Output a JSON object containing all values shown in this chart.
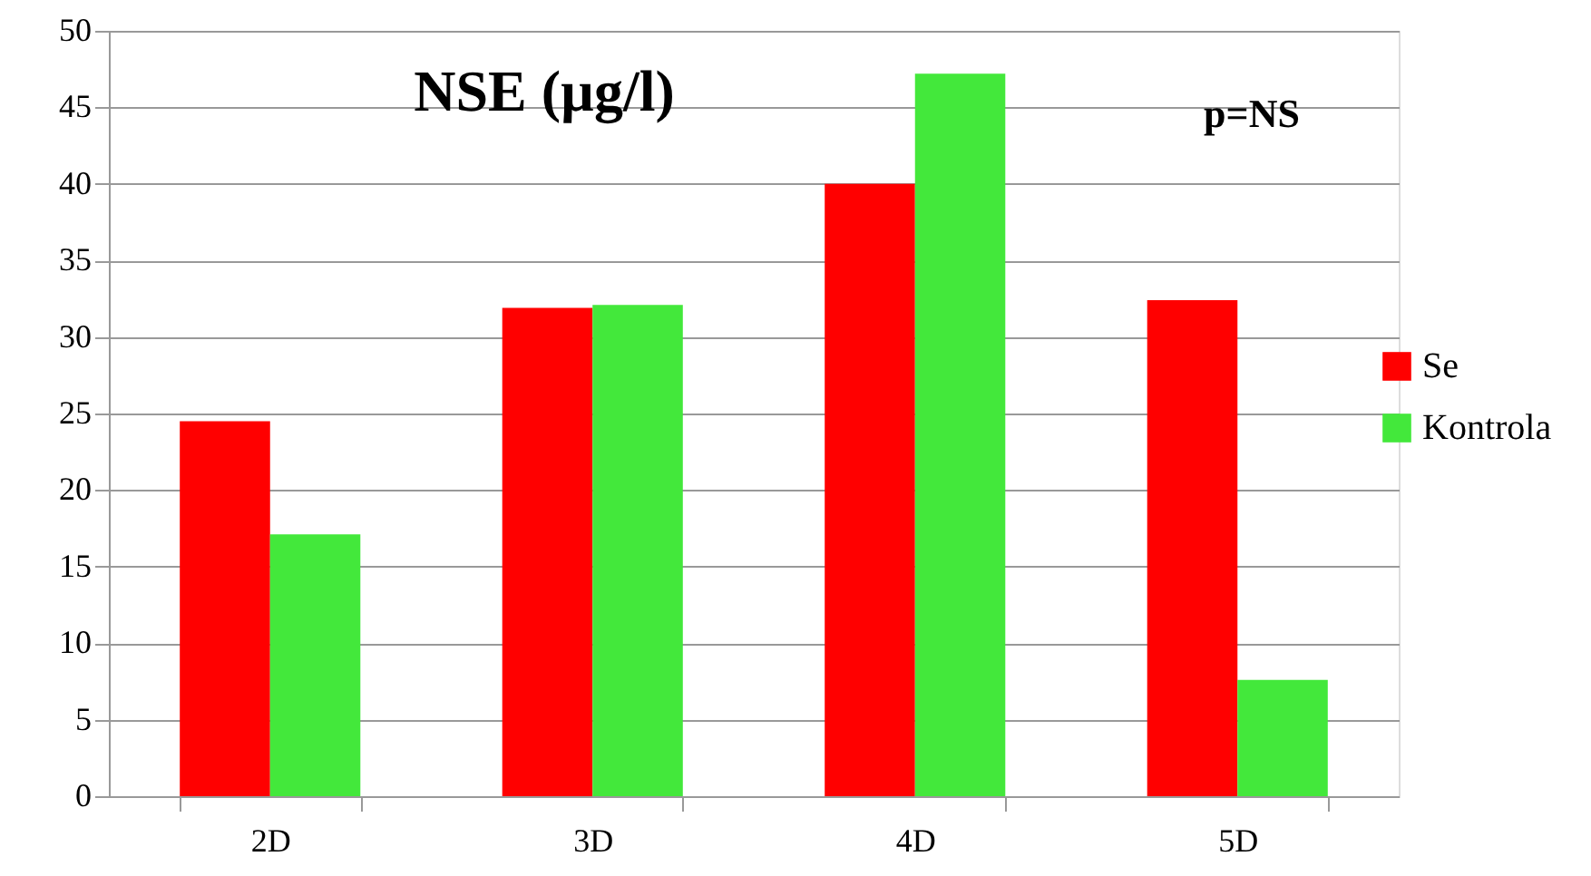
{
  "chart_data": {
    "type": "bar",
    "title": "NSE (µg/l)",
    "categories": [
      "2D",
      "3D",
      "4D",
      "5D"
    ],
    "series": [
      {
        "name": "Se",
        "color": "#ff0000",
        "values": [
          24.5,
          31.9,
          40.0,
          32.4
        ]
      },
      {
        "name": "Kontrola",
        "color": "#43e83b",
        "values": [
          17.1,
          32.1,
          47.2,
          7.6
        ]
      }
    ],
    "annotations": [
      "p=NS"
    ],
    "ylim": [
      0,
      50
    ],
    "yticks": [
      0,
      5,
      10,
      15,
      20,
      25,
      30,
      35,
      40,
      45,
      50
    ],
    "grid": "y",
    "legend": "right"
  }
}
